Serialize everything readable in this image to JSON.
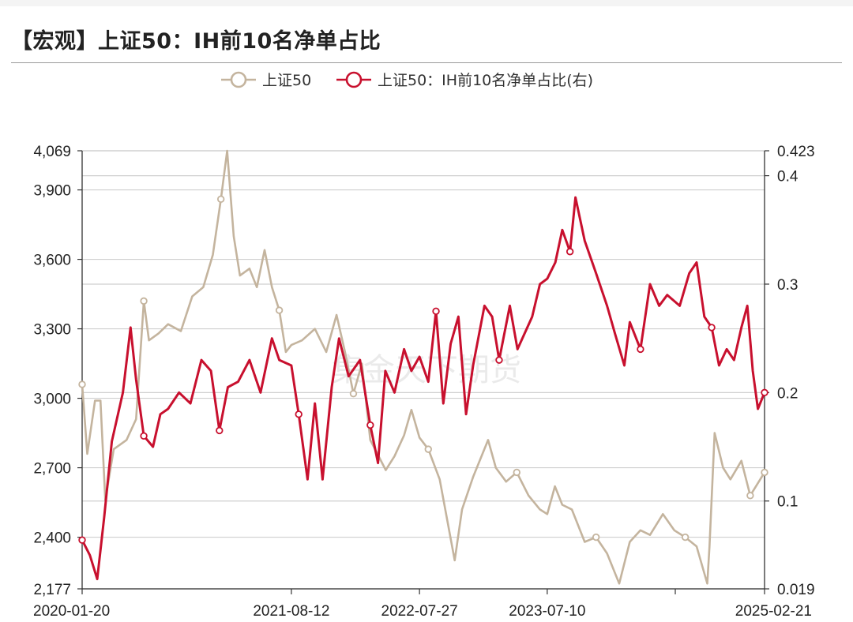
{
  "title": "【宏观】上证50：IH前10名净单占比",
  "watermark": "集金天下期货",
  "colors": {
    "series1": "#c4b49e",
    "series2": "#c8102e",
    "grid": "#cfcfcf",
    "axis": "#333333"
  },
  "chart_data": {
    "type": "line",
    "title": "【宏观】上证50：IH前10名净单占比",
    "legend_position": "top",
    "grid": true,
    "x_ticks": [
      "2020-01-20",
      "2021-08-12",
      "2022-07-27",
      "2023-07-10",
      "2025-02-21"
    ],
    "x_range": [
      "2020-01-20",
      "2025-02-21"
    ],
    "y_left": {
      "ticks": [
        "2,177",
        "2,400",
        "2,700",
        "3,000",
        "3,300",
        "3,600",
        "3,900",
        "4,069"
      ],
      "range": [
        2177,
        4069
      ]
    },
    "y_right": {
      "ticks": [
        "0.019",
        "0.1",
        "0.2",
        "0.3",
        "0.4",
        "0.423"
      ],
      "range": [
        0.019,
        0.423
      ]
    },
    "series": [
      {
        "name": "上证50",
        "axis": "left",
        "points": [
          [
            "2020-01-20",
            3060
          ],
          [
            "2020-02-03",
            2760
          ],
          [
            "2020-02-24",
            2990
          ],
          [
            "2020-03-10",
            2990
          ],
          [
            "2020-03-23",
            2560
          ],
          [
            "2020-04-15",
            2780
          ],
          [
            "2020-05-20",
            2820
          ],
          [
            "2020-06-15",
            2910
          ],
          [
            "2020-07-06",
            3420
          ],
          [
            "2020-07-20",
            3250
          ],
          [
            "2020-08-15",
            3280
          ],
          [
            "2020-09-10",
            3320
          ],
          [
            "2020-10-15",
            3290
          ],
          [
            "2020-11-15",
            3440
          ],
          [
            "2020-12-15",
            3480
          ],
          [
            "2021-01-10",
            3620
          ],
          [
            "2021-02-01",
            3860
          ],
          [
            "2021-02-18",
            4069
          ],
          [
            "2021-03-08",
            3700
          ],
          [
            "2021-03-25",
            3530
          ],
          [
            "2021-04-20",
            3560
          ],
          [
            "2021-05-10",
            3480
          ],
          [
            "2021-05-31",
            3640
          ],
          [
            "2021-06-20",
            3480
          ],
          [
            "2021-07-10",
            3380
          ],
          [
            "2021-07-28",
            3200
          ],
          [
            "2021-08-12",
            3230
          ],
          [
            "2021-09-10",
            3250
          ],
          [
            "2021-10-15",
            3300
          ],
          [
            "2021-11-15",
            3200
          ],
          [
            "2021-12-13",
            3360
          ],
          [
            "2022-01-05",
            3200
          ],
          [
            "2022-01-28",
            3020
          ],
          [
            "2022-02-20",
            3150
          ],
          [
            "2022-03-15",
            2820
          ],
          [
            "2022-04-26",
            2690
          ],
          [
            "2022-05-20",
            2750
          ],
          [
            "2022-06-15",
            2840
          ],
          [
            "2022-07-05",
            2950
          ],
          [
            "2022-07-27",
            2830
          ],
          [
            "2022-08-20",
            2780
          ],
          [
            "2022-09-20",
            2650
          ],
          [
            "2022-10-31",
            2300
          ],
          [
            "2022-11-20",
            2520
          ],
          [
            "2022-12-20",
            2660
          ],
          [
            "2023-01-30",
            2820
          ],
          [
            "2023-02-20",
            2700
          ],
          [
            "2023-03-20",
            2640
          ],
          [
            "2023-04-18",
            2680
          ],
          [
            "2023-05-20",
            2580
          ],
          [
            "2023-06-20",
            2520
          ],
          [
            "2023-07-10",
            2500
          ],
          [
            "2023-07-31",
            2620
          ],
          [
            "2023-08-20",
            2540
          ],
          [
            "2023-09-15",
            2520
          ],
          [
            "2023-10-20",
            2380
          ],
          [
            "2023-11-20",
            2400
          ],
          [
            "2023-12-20",
            2330
          ],
          [
            "2024-01-22",
            2200
          ],
          [
            "2024-02-20",
            2380
          ],
          [
            "2024-03-20",
            2430
          ],
          [
            "2024-04-15",
            2410
          ],
          [
            "2024-05-20",
            2500
          ],
          [
            "2024-06-20",
            2430
          ],
          [
            "2024-07-20",
            2400
          ],
          [
            "2024-08-20",
            2360
          ],
          [
            "2024-09-18",
            2200
          ],
          [
            "2024-09-24",
            2360
          ],
          [
            "2024-10-08",
            2850
          ],
          [
            "2024-10-31",
            2700
          ],
          [
            "2024-11-20",
            2650
          ],
          [
            "2024-12-20",
            2730
          ],
          [
            "2025-01-13",
            2580
          ],
          [
            "2025-02-21",
            2680
          ]
        ]
      },
      {
        "name": "上证50：IH前10名净单占比(右)",
        "axis": "right",
        "points": [
          [
            "2020-01-20",
            0.064
          ],
          [
            "2020-02-10",
            0.05
          ],
          [
            "2020-03-01",
            0.028
          ],
          [
            "2020-03-20",
            0.085
          ],
          [
            "2020-04-10",
            0.155
          ],
          [
            "2020-05-10",
            0.2
          ],
          [
            "2020-05-31",
            0.26
          ],
          [
            "2020-06-15",
            0.212
          ],
          [
            "2020-07-06",
            0.16
          ],
          [
            "2020-07-31",
            0.15
          ],
          [
            "2020-08-20",
            0.18
          ],
          [
            "2020-09-10",
            0.185
          ],
          [
            "2020-10-10",
            0.2
          ],
          [
            "2020-11-10",
            0.19
          ],
          [
            "2020-12-10",
            0.23
          ],
          [
            "2021-01-05",
            0.22
          ],
          [
            "2021-01-28",
            0.165
          ],
          [
            "2021-02-20",
            0.205
          ],
          [
            "2021-03-20",
            0.21
          ],
          [
            "2021-04-20",
            0.23
          ],
          [
            "2021-05-20",
            0.2
          ],
          [
            "2021-06-20",
            0.25
          ],
          [
            "2021-07-10",
            0.23
          ],
          [
            "2021-08-12",
            0.225
          ],
          [
            "2021-09-01",
            0.18
          ],
          [
            "2021-09-25",
            0.12
          ],
          [
            "2021-10-15",
            0.19
          ],
          [
            "2021-11-05",
            0.12
          ],
          [
            "2021-11-30",
            0.205
          ],
          [
            "2021-12-20",
            0.25
          ],
          [
            "2022-01-15",
            0.215
          ],
          [
            "2022-02-15",
            0.23
          ],
          [
            "2022-03-15",
            0.17
          ],
          [
            "2022-04-05",
            0.135
          ],
          [
            "2022-04-25",
            0.22
          ],
          [
            "2022-05-20",
            0.2
          ],
          [
            "2022-06-15",
            0.24
          ],
          [
            "2022-07-05",
            0.22
          ],
          [
            "2022-07-27",
            0.233
          ],
          [
            "2022-08-20",
            0.21
          ],
          [
            "2022-09-10",
            0.275
          ],
          [
            "2022-09-30",
            0.19
          ],
          [
            "2022-10-20",
            0.245
          ],
          [
            "2022-11-10",
            0.27
          ],
          [
            "2022-12-01",
            0.18
          ],
          [
            "2022-12-20",
            0.225
          ],
          [
            "2023-01-20",
            0.28
          ],
          [
            "2023-02-10",
            0.27
          ],
          [
            "2023-03-01",
            0.23
          ],
          [
            "2023-03-30",
            0.28
          ],
          [
            "2023-04-20",
            0.24
          ],
          [
            "2023-05-30",
            0.27
          ],
          [
            "2023-06-20",
            0.3
          ],
          [
            "2023-07-10",
            0.305
          ],
          [
            "2023-08-01",
            0.32
          ],
          [
            "2023-08-20",
            0.35
          ],
          [
            "2023-09-10",
            0.33
          ],
          [
            "2023-09-25",
            0.38
          ],
          [
            "2023-10-20",
            0.34
          ],
          [
            "2023-11-20",
            0.31
          ],
          [
            "2023-12-20",
            0.28
          ],
          [
            "2024-01-10",
            0.255
          ],
          [
            "2024-02-05",
            0.225
          ],
          [
            "2024-02-20",
            0.265
          ],
          [
            "2024-03-20",
            0.24
          ],
          [
            "2024-04-15",
            0.3
          ],
          [
            "2024-05-10",
            0.28
          ],
          [
            "2024-06-01",
            0.29
          ],
          [
            "2024-07-05",
            0.28
          ],
          [
            "2024-07-31",
            0.31
          ],
          [
            "2024-08-20",
            0.32
          ],
          [
            "2024-09-10",
            0.27
          ],
          [
            "2024-09-30",
            0.26
          ],
          [
            "2024-10-20",
            0.225
          ],
          [
            "2024-11-10",
            0.24
          ],
          [
            "2024-11-30",
            0.23
          ],
          [
            "2024-12-20",
            0.26
          ],
          [
            "2025-01-05",
            0.28
          ],
          [
            "2025-01-20",
            0.22
          ],
          [
            "2025-02-03",
            0.185
          ],
          [
            "2025-02-21",
            0.2
          ]
        ]
      }
    ]
  }
}
